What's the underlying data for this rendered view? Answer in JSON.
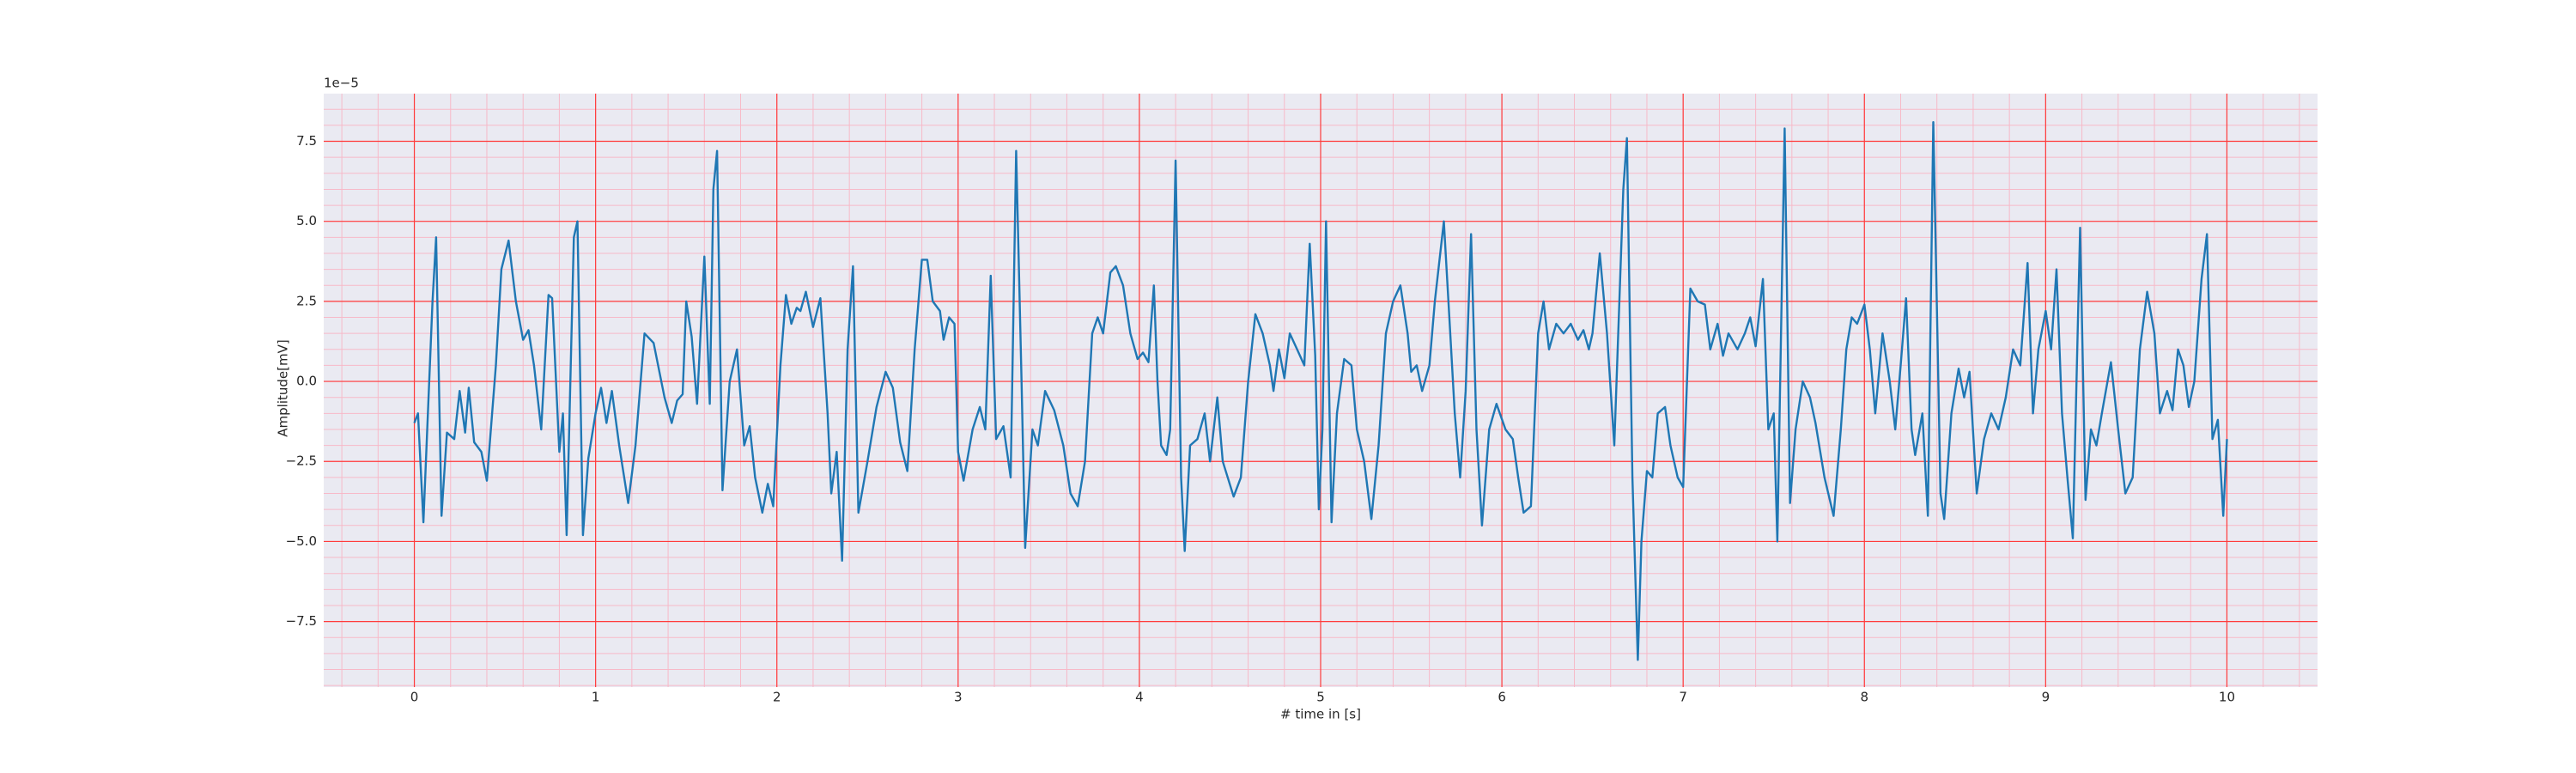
{
  "chart_data": {
    "type": "line",
    "xlabel": "# time in [s]",
    "ylabel": "Amplitude[mV]",
    "y_offset_label": "1e−5",
    "color": "#1f77b4",
    "background": "#eaeaf2",
    "grid": true,
    "grid_color": "#ff3b3b",
    "minor_grid": true,
    "minor_grid_color": "#f7b9c8",
    "xlim": [
      -0.5,
      10.5
    ],
    "ylim": [
      -9.55,
      8.99
    ],
    "xticks": [
      0,
      1,
      2,
      3,
      4,
      5,
      6,
      7,
      8,
      9,
      10
    ],
    "yticks": [
      {
        "value": -7.5,
        "label": "−7.5"
      },
      {
        "value": -5,
        "label": "−5.0"
      },
      {
        "value": -2.5,
        "label": "−2.5"
      },
      {
        "value": 0,
        "label": "0.0"
      },
      {
        "value": 2.5,
        "label": "2.5"
      },
      {
        "value": 5,
        "label": "5.0"
      },
      {
        "value": 7.5,
        "label": "7.5"
      }
    ],
    "xminor": 0.2,
    "yminor": 0.5,
    "x": [
      0,
      0.02,
      0.05,
      0.1,
      0.12,
      0.15,
      0.18,
      0.22,
      0.25,
      0.28,
      0.3,
      0.33,
      0.37,
      0.4,
      0.45,
      0.48,
      0.52,
      0.56,
      0.6,
      0.63,
      0.66,
      0.7,
      0.74,
      0.76,
      0.8,
      0.82,
      0.84,
      0.88,
      0.9,
      0.93,
      0.96,
      1.0,
      1.03,
      1.06,
      1.09,
      1.13,
      1.18,
      1.22,
      1.27,
      1.32,
      1.38,
      1.42,
      1.45,
      1.48,
      1.5,
      1.53,
      1.56,
      1.6,
      1.63,
      1.65,
      1.67,
      1.7,
      1.74,
      1.78,
      1.82,
      1.85,
      1.88,
      1.92,
      1.95,
      1.98,
      2.02,
      2.05,
      2.08,
      2.11,
      2.13,
      2.16,
      2.2,
      2.24,
      2.28,
      2.3,
      2.33,
      2.36,
      2.39,
      2.42,
      2.45,
      2.5,
      2.55,
      2.6,
      2.64,
      2.68,
      2.72,
      2.76,
      2.8,
      2.83,
      2.86,
      2.9,
      2.92,
      2.95,
      2.98,
      3.0,
      3.03,
      3.08,
      3.12,
      3.15,
      3.18,
      3.21,
      3.25,
      3.29,
      3.32,
      3.35,
      3.37,
      3.41,
      3.44,
      3.48,
      3.53,
      3.58,
      3.62,
      3.66,
      3.7,
      3.74,
      3.77,
      3.8,
      3.84,
      3.87,
      3.91,
      3.95,
      3.99,
      4.02,
      4.05,
      4.08,
      4.1,
      4.12,
      4.15,
      4.17,
      4.2,
      4.23,
      4.25,
      4.28,
      4.32,
      4.36,
      4.39,
      4.43,
      4.46,
      4.52,
      4.56,
      4.6,
      4.64,
      4.68,
      4.72,
      4.74,
      4.77,
      4.8,
      4.83,
      4.87,
      4.91,
      4.94,
      4.97,
      4.99,
      5.01,
      5.03,
      5.06,
      5.09,
      5.13,
      5.17,
      5.2,
      5.24,
      5.28,
      5.32,
      5.36,
      5.4,
      5.44,
      5.48,
      5.5,
      5.53,
      5.56,
      5.6,
      5.63,
      5.68,
      5.71,
      5.74,
      5.77,
      5.8,
      5.83,
      5.86,
      5.89,
      5.93,
      5.97,
      6.02,
      6.06,
      6.09,
      6.12,
      6.16,
      6.2,
      6.23,
      6.26,
      6.3,
      6.34,
      6.38,
      6.42,
      6.45,
      6.48,
      6.5,
      6.54,
      6.58,
      6.62,
      6.67,
      6.69,
      6.72,
      6.75,
      6.77,
      6.8,
      6.83,
      6.86,
      6.9,
      6.93,
      6.97,
      7.0,
      7.04,
      7.08,
      7.12,
      7.15,
      7.19,
      7.22,
      7.25,
      7.3,
      7.34,
      7.37,
      7.4,
      7.44,
      7.47,
      7.5,
      7.52,
      7.56,
      7.59,
      7.62,
      7.66,
      7.7,
      7.73,
      7.78,
      7.83,
      7.87,
      7.9,
      7.93,
      7.96,
      8.0,
      8.03,
      8.06,
      8.1,
      8.14,
      8.17,
      8.2,
      8.23,
      8.26,
      8.28,
      8.32,
      8.35,
      8.38,
      8.42,
      8.44,
      8.48,
      8.52,
      8.55,
      8.58,
      8.62,
      8.66,
      8.7,
      8.74,
      8.78,
      8.82,
      8.86,
      8.9,
      8.93,
      8.96,
      9.0,
      9.03,
      9.06,
      9.09,
      9.12,
      9.15,
      9.19,
      9.22,
      9.25,
      9.28,
      9.31,
      9.36,
      9.4,
      9.44,
      9.48,
      9.52,
      9.56,
      9.6,
      9.63,
      9.67,
      9.7,
      9.73,
      9.76,
      9.79,
      9.82,
      9.86,
      9.89,
      9.92,
      9.95,
      9.98,
      10.0
    ],
    "values": [
      -1.3,
      -1.0,
      -4.4,
      2.5,
      4.5,
      -4.2,
      -1.6,
      -1.8,
      -0.3,
      -1.6,
      -0.2,
      -1.9,
      -2.2,
      -3.1,
      0.5,
      3.5,
      4.4,
      2.5,
      1.3,
      1.6,
      0.5,
      -1.5,
      2.7,
      2.6,
      -2.2,
      -1.0,
      -4.8,
      4.5,
      5.0,
      -4.8,
      -2.4,
      -1.0,
      -0.2,
      -1.3,
      -0.3,
      -2.0,
      -3.8,
      -2.0,
      1.5,
      1.2,
      -0.5,
      -1.3,
      -0.6,
      -0.4,
      2.5,
      1.4,
      -0.7,
      3.9,
      -0.7,
      6.0,
      7.2,
      -3.4,
      0.0,
      1.0,
      -2.0,
      -1.4,
      -3.0,
      -4.1,
      -3.2,
      -3.9,
      0.5,
      2.7,
      1.8,
      2.3,
      2.2,
      2.8,
      1.7,
      2.6,
      -1.0,
      -3.5,
      -2.2,
      -5.6,
      1.0,
      3.6,
      -4.1,
      -2.5,
      -0.8,
      0.3,
      -0.2,
      -1.9,
      -2.8,
      1.0,
      3.8,
      3.8,
      2.5,
      2.2,
      1.3,
      2.0,
      1.8,
      -2.2,
      -3.1,
      -1.5,
      -0.8,
      -1.5,
      3.3,
      -1.8,
      -1.4,
      -3.0,
      7.2,
      0.0,
      -5.2,
      -1.5,
      -2.0,
      -0.3,
      -0.9,
      -2.0,
      -3.5,
      -3.9,
      -2.5,
      1.5,
      2.0,
      1.5,
      3.4,
      3.6,
      3.0,
      1.5,
      0.7,
      0.9,
      0.6,
      3.0,
      0.0,
      -2.0,
      -2.3,
      -1.5,
      6.9,
      -3.0,
      -5.3,
      -2.0,
      -1.8,
      -1.0,
      -2.5,
      -0.5,
      -2.5,
      -3.6,
      -3.0,
      0.0,
      2.1,
      1.5,
      0.5,
      -0.3,
      1.0,
      0.1,
      1.5,
      1.0,
      0.5,
      4.3,
      0.8,
      -4.0,
      -1.5,
      5.0,
      -4.4,
      -1.0,
      0.7,
      0.5,
      -1.5,
      -2.5,
      -4.3,
      -2.0,
      1.5,
      2.5,
      3.0,
      1.5,
      0.3,
      0.5,
      -0.3,
      0.5,
      2.5,
      5.0,
      2.0,
      -1.0,
      -3.0,
      -0.3,
      4.6,
      -1.5,
      -4.5,
      -1.5,
      -0.7,
      -1.5,
      -1.8,
      -3.0,
      -4.1,
      -3.9,
      1.5,
      2.5,
      1.0,
      1.8,
      1.5,
      1.8,
      1.3,
      1.6,
      1.0,
      1.5,
      4.0,
      1.5,
      -2.0,
      6.0,
      7.6,
      -3.0,
      -8.7,
      -5.0,
      -2.8,
      -3.0,
      -1.0,
      -0.8,
      -2.0,
      -3.0,
      -3.3,
      2.9,
      2.5,
      2.4,
      1.0,
      1.8,
      0.8,
      1.5,
      1.0,
      1.5,
      2.0,
      1.1,
      3.2,
      -1.5,
      -1.0,
      -5.0,
      7.9,
      -3.8,
      -1.5,
      0.0,
      -0.5,
      -1.3,
      -3.0,
      -4.2,
      -1.5,
      1.0,
      2.0,
      1.8,
      2.4,
      1.0,
      -1.0,
      1.5,
      0.0,
      -1.5,
      0.5,
      2.6,
      -1.5,
      -2.3,
      -1.0,
      -4.2,
      8.1,
      -3.5,
      -4.3,
      -1.0,
      0.4,
      -0.5,
      0.3,
      -3.5,
      -1.8,
      -1.0,
      -1.5,
      -0.5,
      1.0,
      0.5,
      3.7,
      -1.0,
      1.0,
      2.2,
      1.0,
      3.5,
      -1.0,
      -3.0,
      -4.9,
      4.8,
      -3.7,
      -1.5,
      -2.0,
      -1.0,
      0.6,
      -1.5,
      -3.5,
      -3.0,
      1.0,
      2.8,
      1.5,
      -1.0,
      -0.3,
      -0.9,
      1.0,
      0.5,
      -0.8,
      0.0,
      3.2,
      4.6,
      -1.8,
      -1.2,
      -4.2,
      -1.8
    ]
  }
}
